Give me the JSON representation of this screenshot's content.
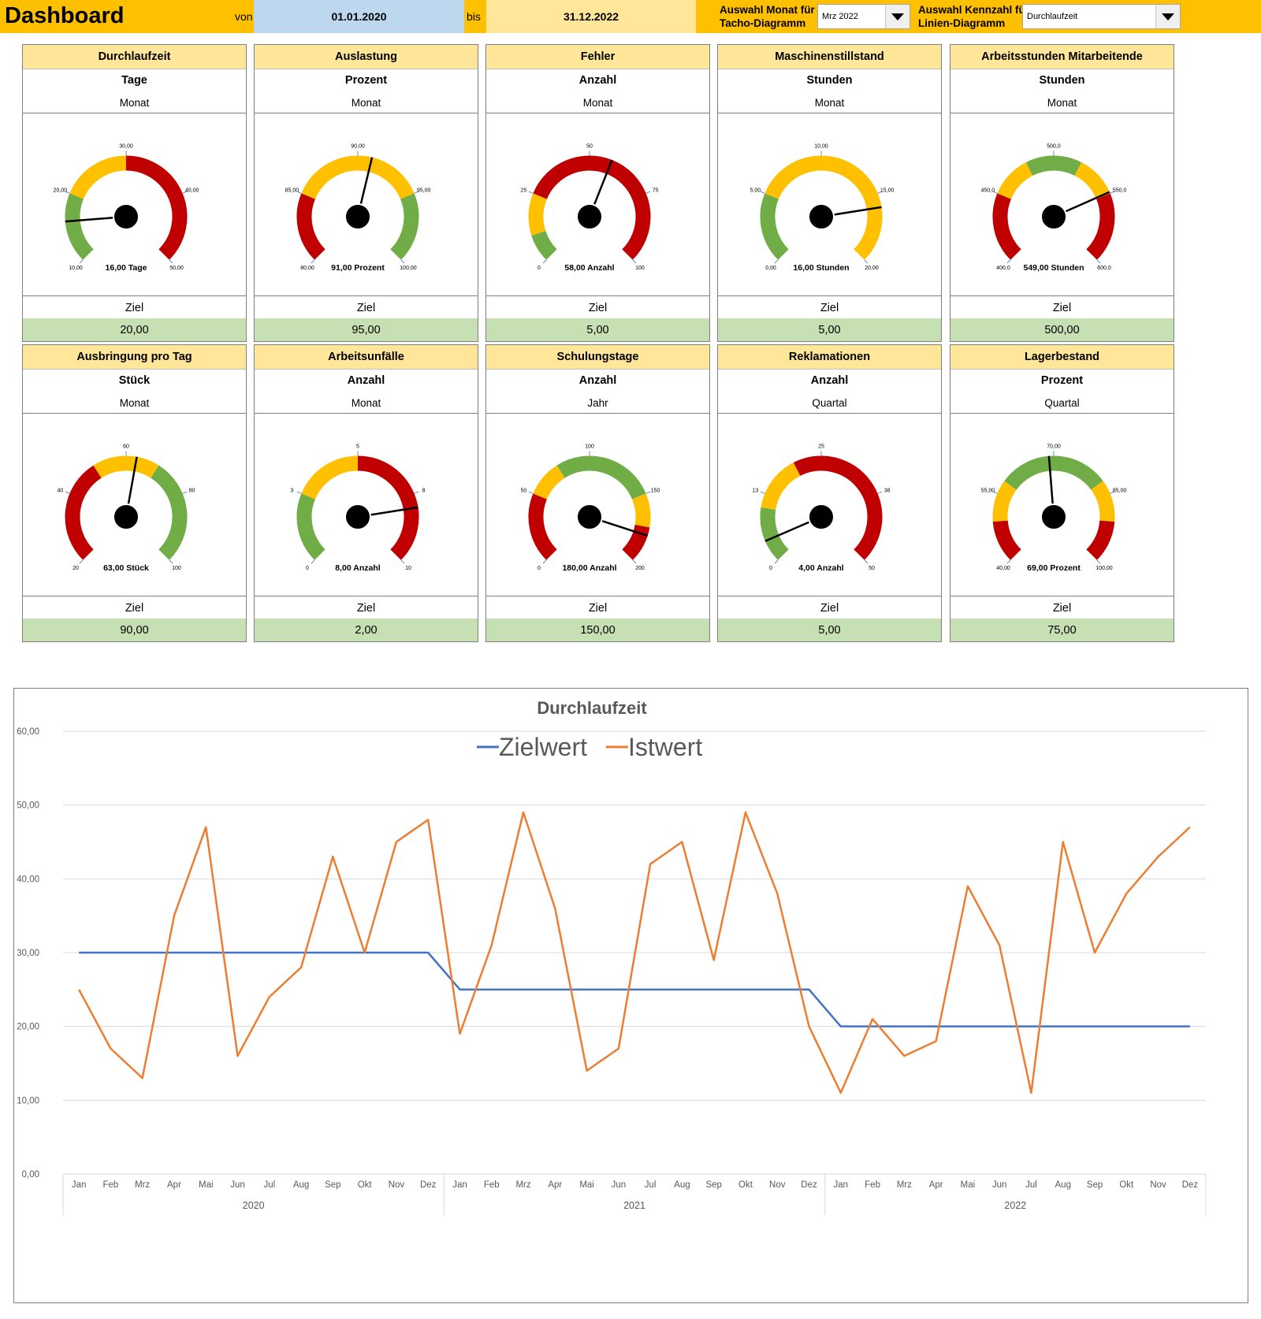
{
  "header": {
    "title": "Dashboard",
    "von_label": "von",
    "date_from": "01.01.2020",
    "bis_label": "bis",
    "date_to": "31.12.2022",
    "month_select_title_1": "Auswahl Monat für",
    "month_select_title_2": "Tacho-Diagramm",
    "month_select_value": "Mrz 2022",
    "kpi_select_title_1": "Auswahl Kennzahl für",
    "kpi_select_title_2": "Linien-Diagramm",
    "kpi_select_value": "Durchlaufzeit"
  },
  "colors": {
    "header": "#ffc000",
    "date_from_bg": "#bdd7ee",
    "date_to_bg": "#ffe699",
    "card_title": "#ffe699",
    "target_bg": "#c6e0b4",
    "green": "#70ad47",
    "yellow": "#ffc000",
    "red": "#c00000",
    "zielwert": "#4472c4",
    "istwert": "#ed7d31"
  },
  "cards": [
    {
      "title": "Durchlaufzeit",
      "unit": "Tage",
      "period": "Monat",
      "ziel_label": "Ziel",
      "ziel_value": "20,00",
      "value": 16,
      "value_label": "16,00 Tage",
      "min": 10,
      "max": 50,
      "ticks": [
        "10,00",
        "20,00",
        "30,00",
        "40,00",
        "50,00"
      ],
      "zones": [
        "green",
        "yellow",
        "red",
        "red"
      ]
    },
    {
      "title": "Auslastung",
      "unit": "Prozent",
      "period": "Monat",
      "ziel_label": "Ziel",
      "ziel_value": "95,00",
      "value": 91,
      "value_label": "91,00 Prozent",
      "min": 80,
      "max": 100,
      "ticks": [
        "80,00",
        "85,00",
        "90,00",
        "95,00",
        "100,00"
      ],
      "zones": [
        "red",
        "yellow",
        "yellow",
        "green"
      ]
    },
    {
      "title": "Fehler",
      "unit": "Anzahl",
      "period": "Monat",
      "ziel_label": "Ziel",
      "ziel_value": "5,00",
      "value": 58,
      "value_label": "58,00 Anzahl",
      "min": 0,
      "max": 100,
      "ticks": [
        "0",
        "25",
        "50",
        "75",
        "100"
      ],
      "zones": [
        "green",
        "yellow",
        "red",
        "red"
      ],
      "zone_breaks": [
        0.1,
        0.25
      ]
    },
    {
      "title": "Maschinenstillstand",
      "unit": "Stunden",
      "period": "Monat",
      "ziel_label": "Ziel",
      "ziel_value": "5,00",
      "value": 16,
      "value_label": "16,00 Stunden",
      "min": 0,
      "max": 20,
      "ticks": [
        "0,00",
        "5,00",
        "10,00",
        "15,00",
        "20,00"
      ],
      "zones": [
        "green",
        "yellow",
        "yellow",
        "red"
      ],
      "zone_breaks": [
        0.25,
        0.8
      ]
    },
    {
      "title": "Arbeitsstunden Mitarbeitende",
      "unit": "Stunden",
      "period": "Monat",
      "ziel_label": "Ziel",
      "ziel_value": "500,00",
      "value": 549,
      "value_label": "549,00 Stunden",
      "min": 400,
      "max": 600,
      "ticks": [
        "400,0",
        "450,0",
        "500,0",
        "550,0",
        "600,0"
      ],
      "zones": [
        "red",
        "yellow",
        "green",
        "yellow",
        "red"
      ],
      "zone_breaks": [
        0.25,
        0.4,
        0.6,
        0.75
      ]
    },
    {
      "title": "Ausbringung pro Tag",
      "unit": "Stück",
      "period": "Monat",
      "ziel_label": "Ziel",
      "ziel_value": "90,00",
      "value": 63,
      "value_label": "63,00 Stück",
      "min": 20,
      "max": 100,
      "ticks": [
        "20",
        "40",
        "60",
        "80",
        "100"
      ],
      "zones": [
        "red",
        "yellow",
        "green"
      ],
      "zone_breaks": [
        0.38,
        0.62
      ]
    },
    {
      "title": "Arbeitsunfälle",
      "unit": "Anzahl",
      "period": "Monat",
      "ziel_label": "Ziel",
      "ziel_value": "2,00",
      "value": 8,
      "value_label": "8,00 Anzahl",
      "min": 0,
      "max": 10,
      "ticks": [
        "0",
        "3",
        "5",
        "8",
        "10"
      ],
      "zones": [
        "green",
        "yellow",
        "red"
      ],
      "zone_breaks": [
        0.25,
        0.5
      ]
    },
    {
      "title": "Schulungstage",
      "unit": "Anzahl",
      "period": "Jahr",
      "ziel_label": "Ziel",
      "ziel_value": "150,00",
      "value": 180,
      "value_label": "180,00 Anzahl",
      "min": 0,
      "max": 200,
      "ticks": [
        "0",
        "50",
        "100",
        "150",
        "200"
      ],
      "zones": [
        "red",
        "yellow",
        "green",
        "yellow",
        "red"
      ],
      "zone_breaks": [
        0.25,
        0.38,
        0.75,
        0.87
      ]
    },
    {
      "title": "Reklamationen",
      "unit": "Anzahl",
      "period": "Quartal",
      "ziel_label": "Ziel",
      "ziel_value": "5,00",
      "value": 4,
      "value_label": "4,00 Anzahl",
      "min": 0,
      "max": 50,
      "ticks": [
        "0",
        "13",
        "25",
        "38",
        "50"
      ],
      "zones": [
        "green",
        "yellow",
        "red"
      ],
      "zone_breaks": [
        0.2,
        0.4
      ]
    },
    {
      "title": "Lagerbestand",
      "unit": "Prozent",
      "period": "Quartal",
      "ziel_label": "Ziel",
      "ziel_value": "75,00",
      "value": 69,
      "value_label": "69,00 Prozent",
      "min": 40,
      "max": 100,
      "ticks": [
        "40,00",
        "55,00",
        "70,00",
        "85,00",
        "100,00"
      ],
      "zones": [
        "red",
        "yellow",
        "green",
        "yellow",
        "red"
      ],
      "zone_breaks": [
        0.15,
        0.3,
        0.7,
        0.85
      ]
    }
  ],
  "chart_data": {
    "type": "line",
    "title": "Durchlaufzeit",
    "legend_position": "top",
    "ylim": [
      0,
      60
    ],
    "yticks": [
      "0,00",
      "10,00",
      "20,00",
      "30,00",
      "40,00",
      "50,00",
      "60,00"
    ],
    "months": [
      "Jan",
      "Feb",
      "Mrz",
      "Apr",
      "Mai",
      "Jun",
      "Jul",
      "Aug",
      "Sep",
      "Okt",
      "Nov",
      "Dez"
    ],
    "years": [
      "2020",
      "2021",
      "2022"
    ],
    "series": [
      {
        "name": "Zielwert",
        "color": "#4472c4",
        "values": [
          30,
          30,
          30,
          30,
          30,
          30,
          30,
          30,
          30,
          30,
          30,
          30,
          25,
          25,
          25,
          25,
          25,
          25,
          25,
          25,
          25,
          25,
          25,
          25,
          20,
          20,
          20,
          20,
          20,
          20,
          20,
          20,
          20,
          20,
          20,
          20
        ]
      },
      {
        "name": "Istwert",
        "color": "#ed7d31",
        "values": [
          25,
          17,
          13,
          35,
          47,
          16,
          24,
          28,
          43,
          30,
          45,
          48,
          19,
          31,
          49,
          36,
          14,
          17,
          42,
          45,
          29,
          49,
          38,
          20,
          11,
          21,
          16,
          18,
          39,
          31,
          11,
          45,
          30,
          38,
          43,
          47
        ]
      }
    ]
  }
}
